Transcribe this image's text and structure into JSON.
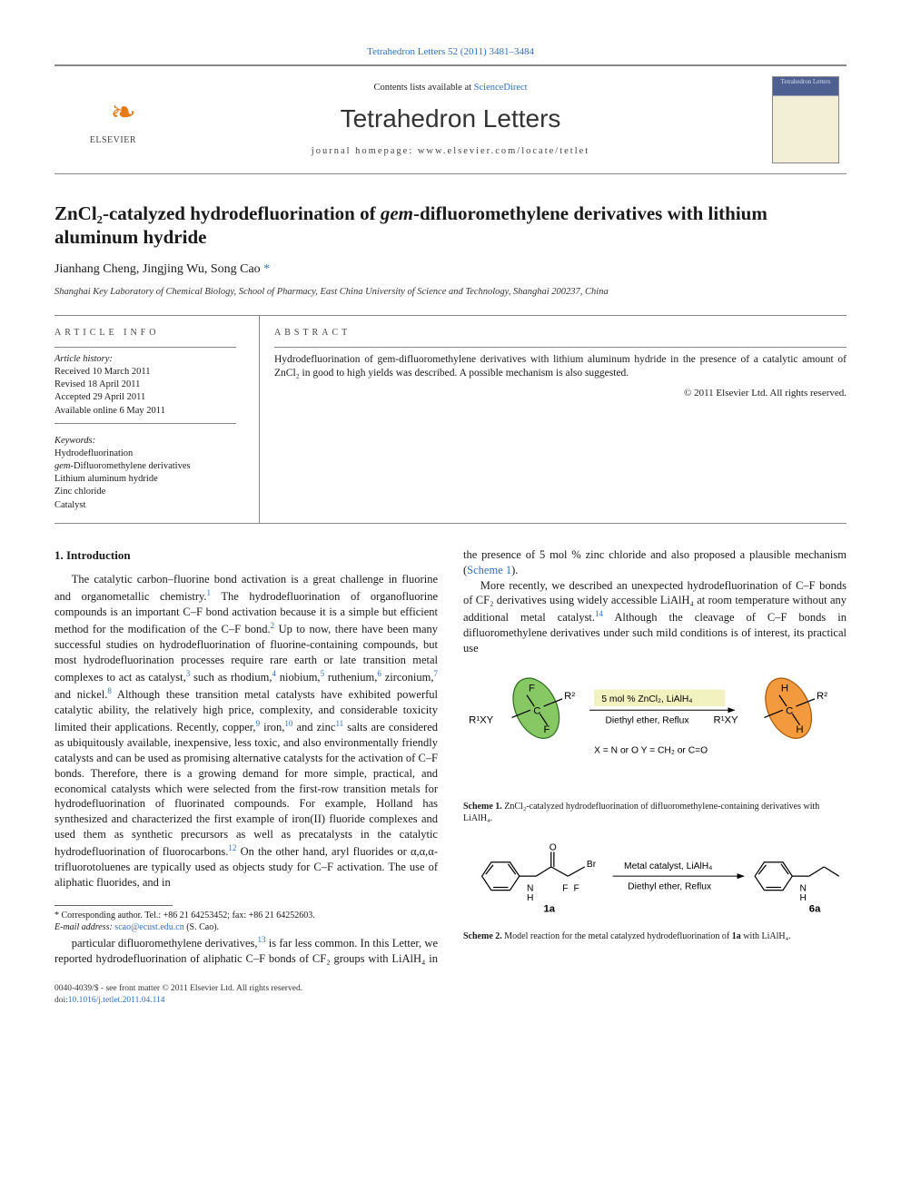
{
  "journal": {
    "citation": "Tetrahedron Letters 52 (2011) 3481–3484",
    "contents_prefix": "Contents lists available at ",
    "contents_link": "ScienceDirect",
    "name": "Tetrahedron Letters",
    "homepage_prefix": "journal homepage: ",
    "homepage": "www.elsevier.com/locate/tetlet",
    "publisher": "ELSEVIER",
    "cover_title": "Tetrahedron Letters"
  },
  "article": {
    "title_html": "ZnCl₂-catalyzed hydrodefluorination of <i>gem</i>-difluoromethylene derivatives with lithium aluminum hydride",
    "authors_html": "Jianhang Cheng, Jingjing Wu, Song Cao <span class='corr'>*</span>",
    "affiliation": "Shanghai Key Laboratory of Chemical Biology, School of Pharmacy, East China University of Science and Technology, Shanghai 200237, China"
  },
  "info": {
    "label": "ARTICLE INFO",
    "history_label": "Article history:",
    "history": [
      "Received 10 March 2011",
      "Revised 18 April 2011",
      "Accepted 29 April 2011",
      "Available online 6 May 2011"
    ],
    "keywords_label": "Keywords:",
    "keywords": [
      "Hydrodefluorination",
      "gem-Difluoromethylene derivatives",
      "Lithium aluminum hydride",
      "Zinc chloride",
      "Catalyst"
    ]
  },
  "abstract": {
    "label": "ABSTRACT",
    "text": "Hydrodefluorination of gem-difluoromethylene derivatives with lithium aluminum hydride in the presence of a catalytic amount of ZnCl₂ in good to high yields was described. A possible mechanism is also suggested.",
    "copyright": "© 2011 Elsevier Ltd. All rights reserved."
  },
  "body": {
    "h_intro": "1. Introduction",
    "p1_html": "The catalytic carbon–fluorine bond activation is a great challenge in fluorine and organometallic chemistry.<sup>1</sup> The hydrodefluorination of organofluorine compounds is an important C–F bond activation because it is a simple but efficient method for the modification of the C–F bond.<sup>2</sup> Up to now, there have been many successful studies on hydrodefluorination of fluorine-containing compounds, but most hydrodefluorination processes require rare earth or late transition metal complexes to act as catalyst,<sup>3</sup> such as rhodium,<sup>4</sup> niobium,<sup>5</sup> ruthenium,<sup>6</sup> zirconium,<sup>7</sup> and nickel.<sup>8</sup> Although these transition metal catalysts have exhibited powerful catalytic ability, the relatively high price, complexity, and considerable toxicity limited their applications. Recently, copper,<sup>9</sup> iron,<sup>10</sup> and zinc<sup>11</sup> salts are considered as ubiquitously available, inexpensive, less toxic, and also environmentally friendly catalysts and can be used as promising alternative catalysts for the activation of C–F bonds. Therefore, there is a growing demand for more simple, practical, and economical catalysts which were selected from the first-row transition metals for hydrodefluorination of fluorinated compounds. For example, Holland has synthesized and characterized the first example of iron(II) fluoride complexes and used them as synthetic precursors as well as precatalysts in the catalytic hydrodefluorination of fluorocarbons.<sup>12</sup> On the other hand, aryl fluorides or α,α,α-trifluorotoluenes are typically used as objects study for C–F activation. The use of aliphatic fluorides, and in",
    "p2_html": "particular difluoromethylene derivatives,<sup>13</sup> is far less common. In this Letter, we reported hydrodefluorination of aliphatic C–F bonds of CF₂ groups with LiAlH₄ in the presence of 5 mol % zinc chloride and also proposed a plausible mechanism (<a style='color:#3070c0'>Scheme 1</a>).",
    "p3_html": "More recently, we described an unexpected hydrodefluorination of C–F bonds of CF₂ derivatives using widely accessible LiAlH₄ at room temperature without any additional metal catalyst.<sup>14</sup> Although the cleavage of C–F bonds in difluoromethylene derivatives under such mild conditions is of interest, its practical use"
  },
  "scheme1": {
    "caption_html": "<b>Scheme 1.</b> ZnCl₂-catalyzed hydrodefluorination of difluoromethylene-containing derivatives with LiAlH₄.",
    "reagent_top": "5 mol % ZnCl₂, LiAlH₄",
    "reagent_bottom": "Diethyl ether, Reflux",
    "left_group": "R¹XY",
    "right_group": "R²",
    "legend": "X = N or O     Y = CH₂ or C=O",
    "F": "F",
    "H": "H",
    "C": "C"
  },
  "scheme2": {
    "caption_html": "<b>Scheme 2.</b> Model reaction for the metal catalyzed hydrodefluorination of <b>1a</b> with LiAlH₄.",
    "reagent_top": "Metal catalyst, LiAlH₄",
    "reagent_bottom": "Diethyl ether, Reflux",
    "label_1a": "1a",
    "label_6a": "6a"
  },
  "footnote": {
    "line1": "* Corresponding author. Tel.: +86 21 64253452; fax: +86 21 64252603.",
    "line2_prefix": "E-mail address: ",
    "email": "scao@ecust.edu.cn",
    "line2_suffix": " (S. Cao)."
  },
  "footer": {
    "line1": "0040-4039/$ - see front matter © 2011 Elsevier Ltd. All rights reserved.",
    "line2_prefix": "doi:",
    "doi": "10.1016/j.tetlet.2011.04.114"
  },
  "colors": {
    "link": "#3070c0",
    "logo_orange": "#e67a17",
    "oval_green_fill": "#88c864",
    "oval_green_stroke": "#2b6d1e",
    "oval_orange_fill": "#f39a3e",
    "oval_orange_stroke": "#a85a0c"
  }
}
